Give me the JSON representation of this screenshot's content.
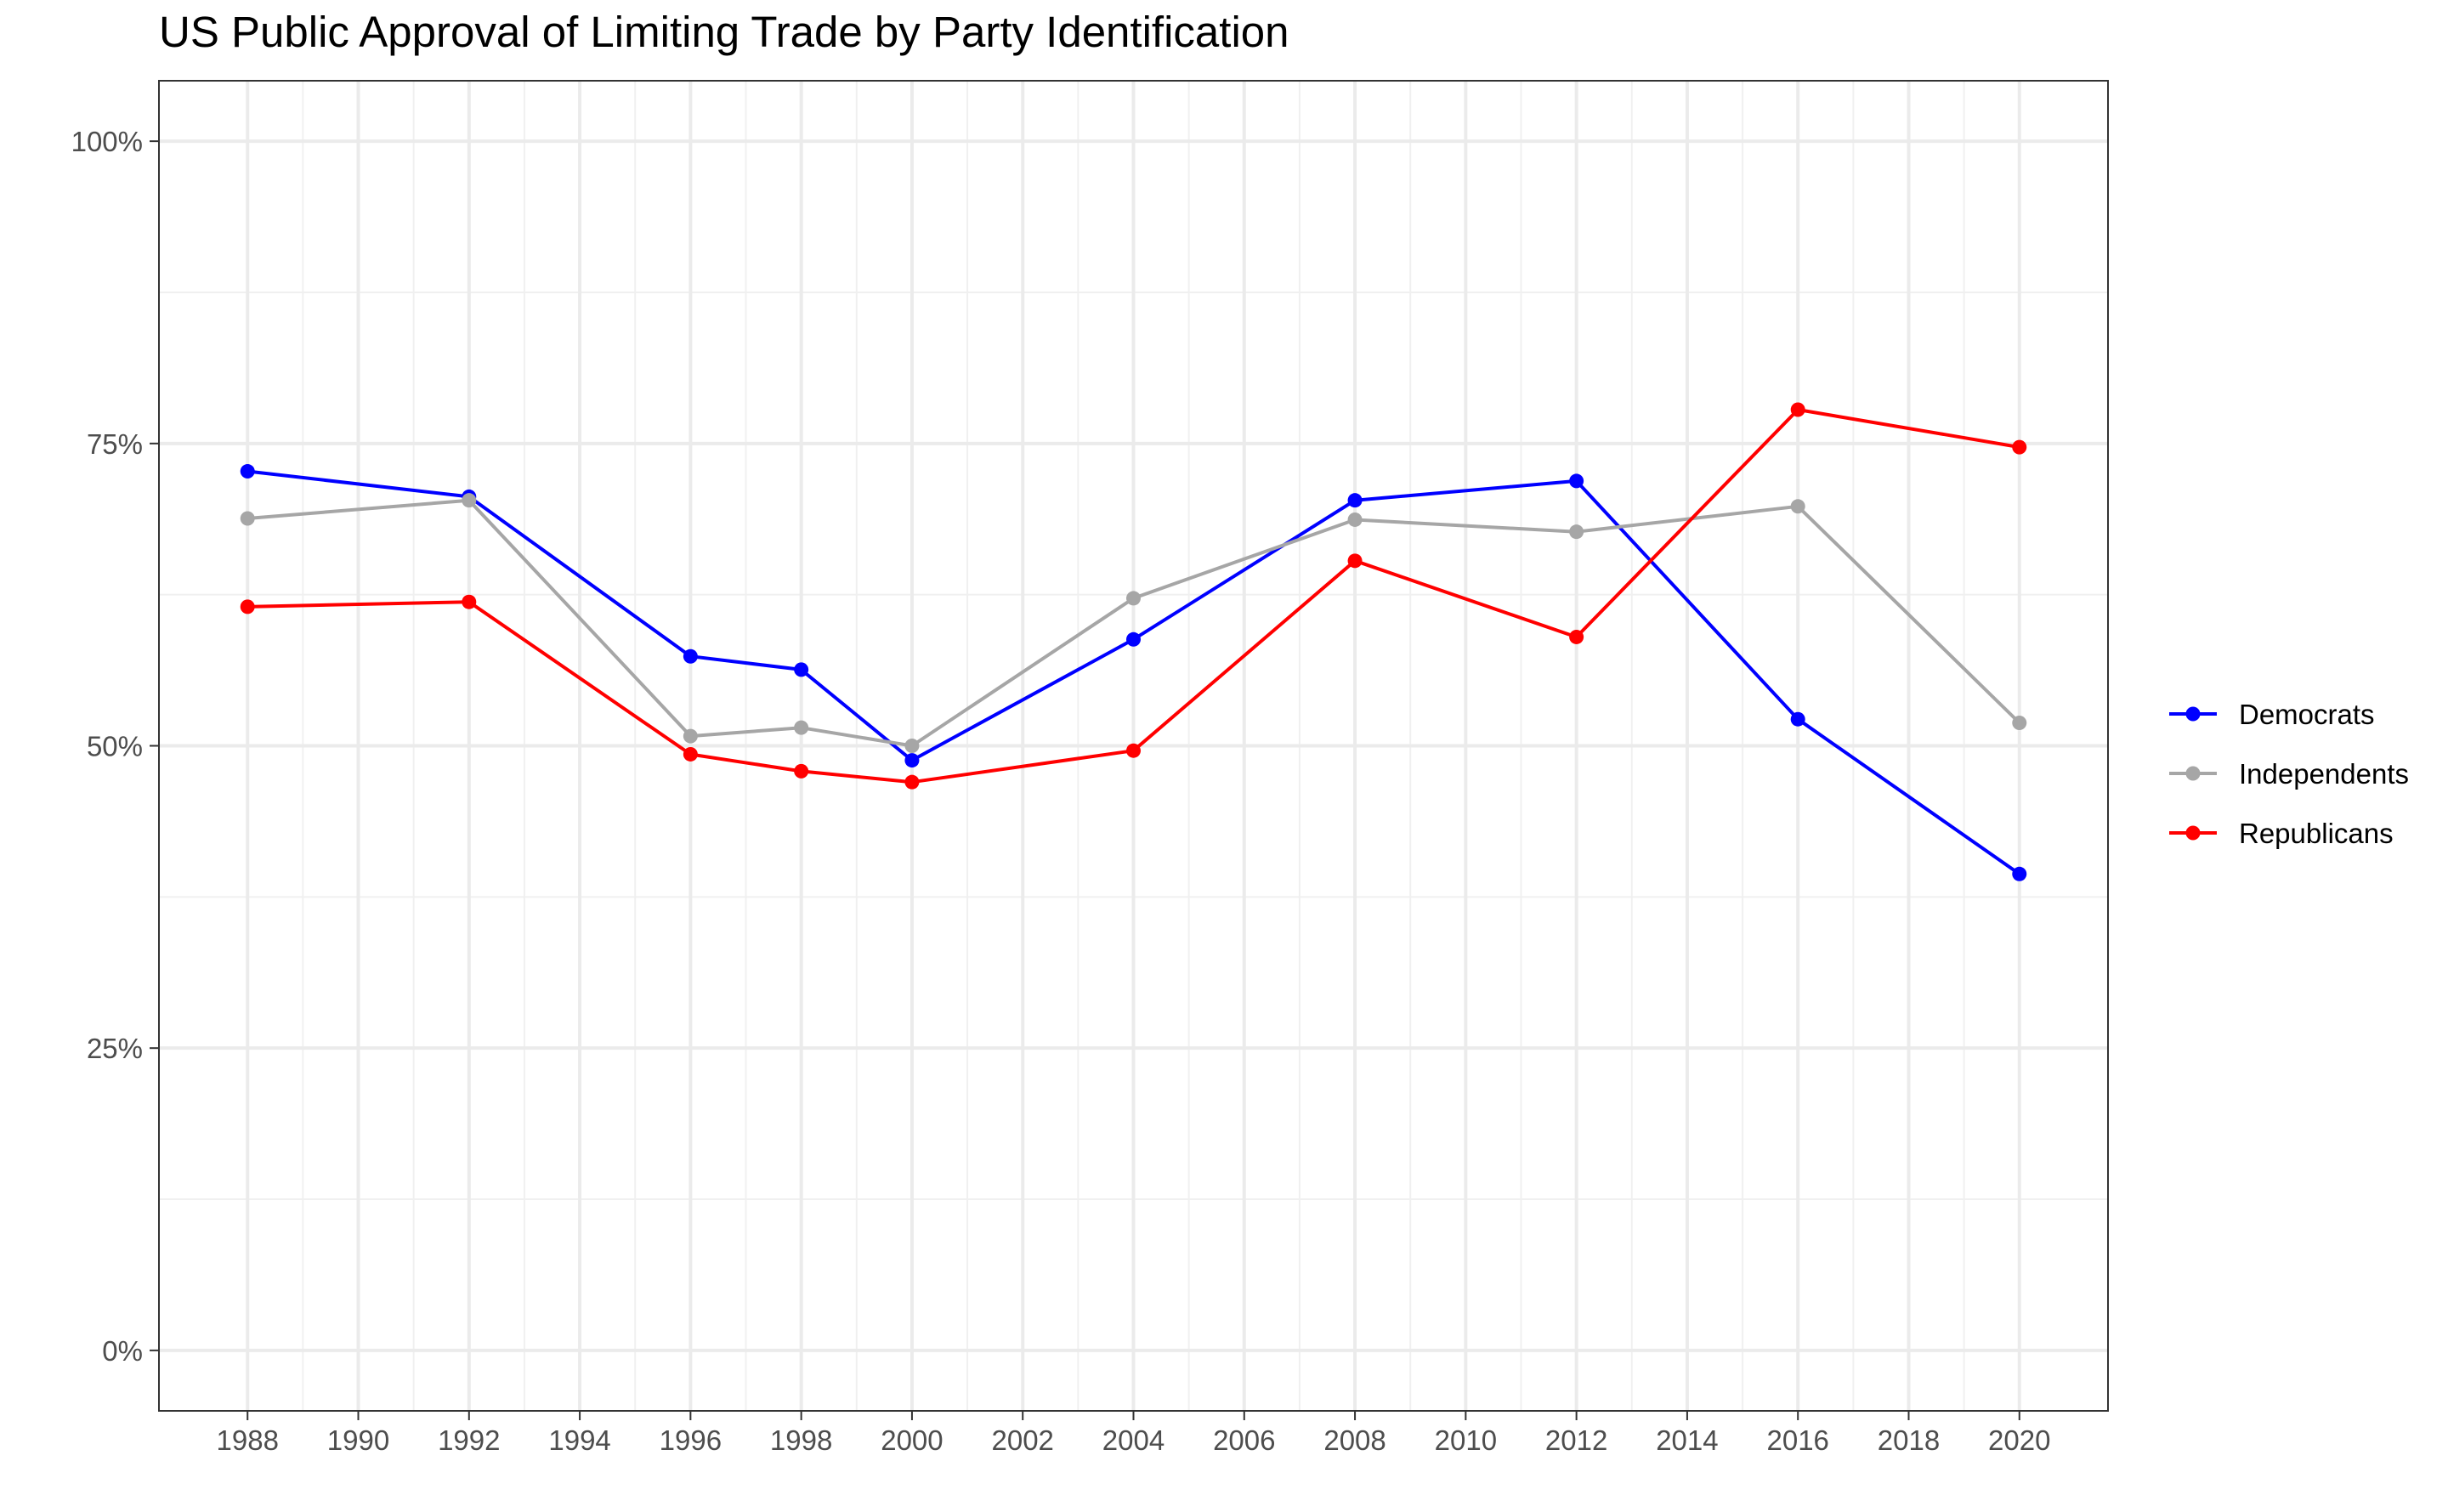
{
  "chart_data": {
    "type": "line",
    "title": "US Public Approval of Limiting Trade by Party Identification",
    "xlabel": "",
    "ylabel": "",
    "x_ticks": [
      "1988",
      "1990",
      "1992",
      "1994",
      "1996",
      "1998",
      "2000",
      "2002",
      "2004",
      "2006",
      "2008",
      "2010",
      "2012",
      "2014",
      "2016",
      "2018",
      "2020"
    ],
    "y_ticks": [
      "0%",
      "25%",
      "50%",
      "75%",
      "100%"
    ],
    "xlim": [
      1986.4,
      2021.6
    ],
    "ylim": [
      -0.05,
      1.05
    ],
    "grid": true,
    "legend_position": "right",
    "series": [
      {
        "name": "Democrats",
        "color": "#0000ff",
        "x": [
          1988,
          1992,
          1996,
          1998,
          2000,
          2004,
          2008,
          2012,
          2016,
          2020
        ],
        "values": [
          0.727,
          0.706,
          0.574,
          0.563,
          0.488,
          0.588,
          0.703,
          0.719,
          0.522,
          0.394
        ]
      },
      {
        "name": "Independents",
        "color": "#a6a6a6",
        "x": [
          1988,
          1992,
          1996,
          1998,
          2000,
          2004,
          2008,
          2012,
          2016,
          2020
        ],
        "values": [
          0.688,
          0.703,
          0.508,
          0.515,
          0.5,
          0.622,
          0.687,
          0.677,
          0.698,
          0.519
        ]
      },
      {
        "name": "Republicans",
        "color": "#ff0000",
        "x": [
          1988,
          1992,
          1996,
          1998,
          2000,
          2004,
          2008,
          2012,
          2016,
          2020
        ],
        "values": [
          0.615,
          0.619,
          0.493,
          0.479,
          0.47,
          0.496,
          0.653,
          0.59,
          0.778,
          0.747
        ]
      }
    ]
  }
}
